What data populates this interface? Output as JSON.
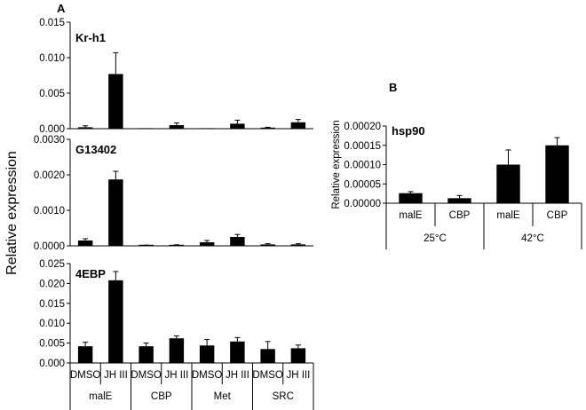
{
  "panel_labels": {
    "a": "A",
    "b": "B"
  },
  "left_ylabel": "Relative expression",
  "chart_data": [
    {
      "type": "bar",
      "title": "Kr-h1",
      "ylabel": "",
      "ylim": [
        0,
        0.015
      ],
      "yticks": [
        "0.000",
        "0.005",
        "0.010",
        "0.015"
      ],
      "categories": [
        "DMSO",
        "JH III",
        "DMSO",
        "JH III",
        "DMSO",
        "JH III",
        "DMSO",
        "JH III"
      ],
      "values": [
        0.0002,
        0.0077,
        0.0,
        0.0005,
        0.0,
        0.0007,
        0.0001,
        0.0009
      ],
      "errors": [
        0.0002,
        0.003,
        0.0,
        0.0003,
        0.0,
        0.0005,
        0.0001,
        0.0004
      ],
      "groups": []
    },
    {
      "type": "bar",
      "title": "G13402",
      "ylabel": "",
      "ylim": [
        0,
        0.003
      ],
      "yticks": [
        "0.0000",
        "0.0010",
        "0.0020",
        "0.0030"
      ],
      "categories": [
        "DMSO",
        "JH III",
        "DMSO",
        "JH III",
        "DMSO",
        "JH III",
        "DMSO",
        "JH III"
      ],
      "values": [
        0.00015,
        0.00187,
        1e-05,
        2e-05,
        0.0001,
        0.00025,
        4e-05,
        4e-05
      ],
      "errors": [
        5e-05,
        0.00023,
        1e-05,
        1e-05,
        5e-05,
        7e-05,
        2e-05,
        2e-05
      ],
      "groups": []
    },
    {
      "type": "bar",
      "title": "4EBP",
      "ylabel": "",
      "ylim": [
        0,
        0.025
      ],
      "yticks": [
        "0.000",
        "0.005",
        "0.010",
        "0.015",
        "0.020",
        "0.025"
      ],
      "categories": [
        "DMSO",
        "JH III",
        "DMSO",
        "JH III",
        "DMSO",
        "JH III",
        "DMSO",
        "JH III"
      ],
      "values": [
        0.0042,
        0.0208,
        0.0042,
        0.0062,
        0.0044,
        0.0054,
        0.0035,
        0.0037
      ],
      "errors": [
        0.001,
        0.0022,
        0.0008,
        0.0006,
        0.0015,
        0.001,
        0.0019,
        0.0008
      ],
      "groups": [
        "malE",
        "CBP",
        "Met",
        "SRC"
      ]
    },
    {
      "type": "bar",
      "title": "hsp90",
      "ylabel": "Relative expression",
      "ylim": [
        0,
        0.0002
      ],
      "yticks": [
        "0.00000",
        "0.00005",
        "0.00010",
        "0.00015",
        "0.00020"
      ],
      "categories": [
        "malE",
        "CBP",
        "malE",
        "CBP"
      ],
      "values": [
        2.6e-05,
        1.3e-05,
        0.0001,
        0.00015
      ],
      "errors": [
        4e-06,
        7e-06,
        3.8e-05,
        2e-05
      ],
      "groups": [
        "25°C",
        "42°C"
      ]
    }
  ]
}
